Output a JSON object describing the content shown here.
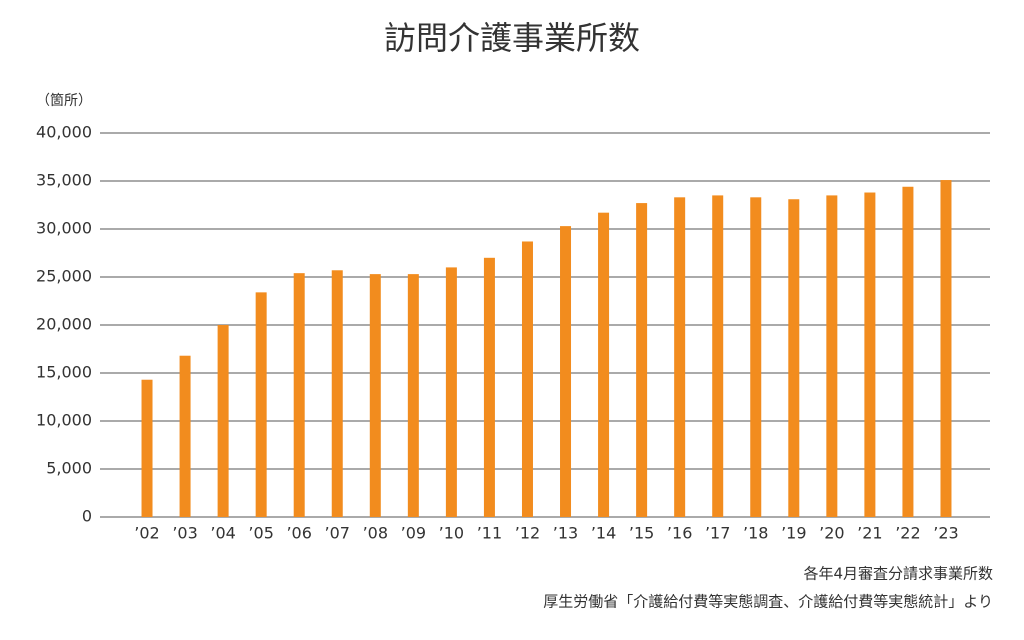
{
  "chart_data": {
    "type": "bar",
    "title": "訪問介護事業所数",
    "y_label": "（箇所）",
    "notes": [
      "各年4月審査分請求事業所数",
      "厚生労働省「介護給付費等実態調査、介護給付費等実態統計」より"
    ],
    "categories": [
      "’02",
      "’03",
      "’04",
      "’05",
      "’06",
      "’07",
      "’08",
      "’09",
      "’10",
      "’11",
      "’12",
      "’13",
      "’14",
      "’15",
      "’16",
      "’17",
      "’18",
      "’19",
      "’20",
      "’21",
      "’22",
      "’23"
    ],
    "values": [
      14300,
      16800,
      20000,
      23400,
      25400,
      25700,
      25300,
      25300,
      26000,
      27000,
      28700,
      30300,
      31700,
      32700,
      33300,
      33500,
      33300,
      33100,
      33500,
      33800,
      34400,
      35100
    ],
    "color": "#f28c1e",
    "ylim": [
      0,
      40000
    ],
    "yticks": [
      0,
      {
        "value": 5000,
        "label": "5,000"
      },
      {
        "value": 10000,
        "label": "10,000"
      },
      {
        "value": 15000,
        "label": "15,000"
      },
      {
        "value": 20000,
        "label": "20,000"
      },
      {
        "value": 25000,
        "label": "25,000"
      },
      {
        "value": 30000,
        "label": "30,000"
      },
      {
        "value": 35000,
        "label": "35,000"
      },
      {
        "value": 40000,
        "label": "40,000"
      }
    ],
    "grid": true
  }
}
